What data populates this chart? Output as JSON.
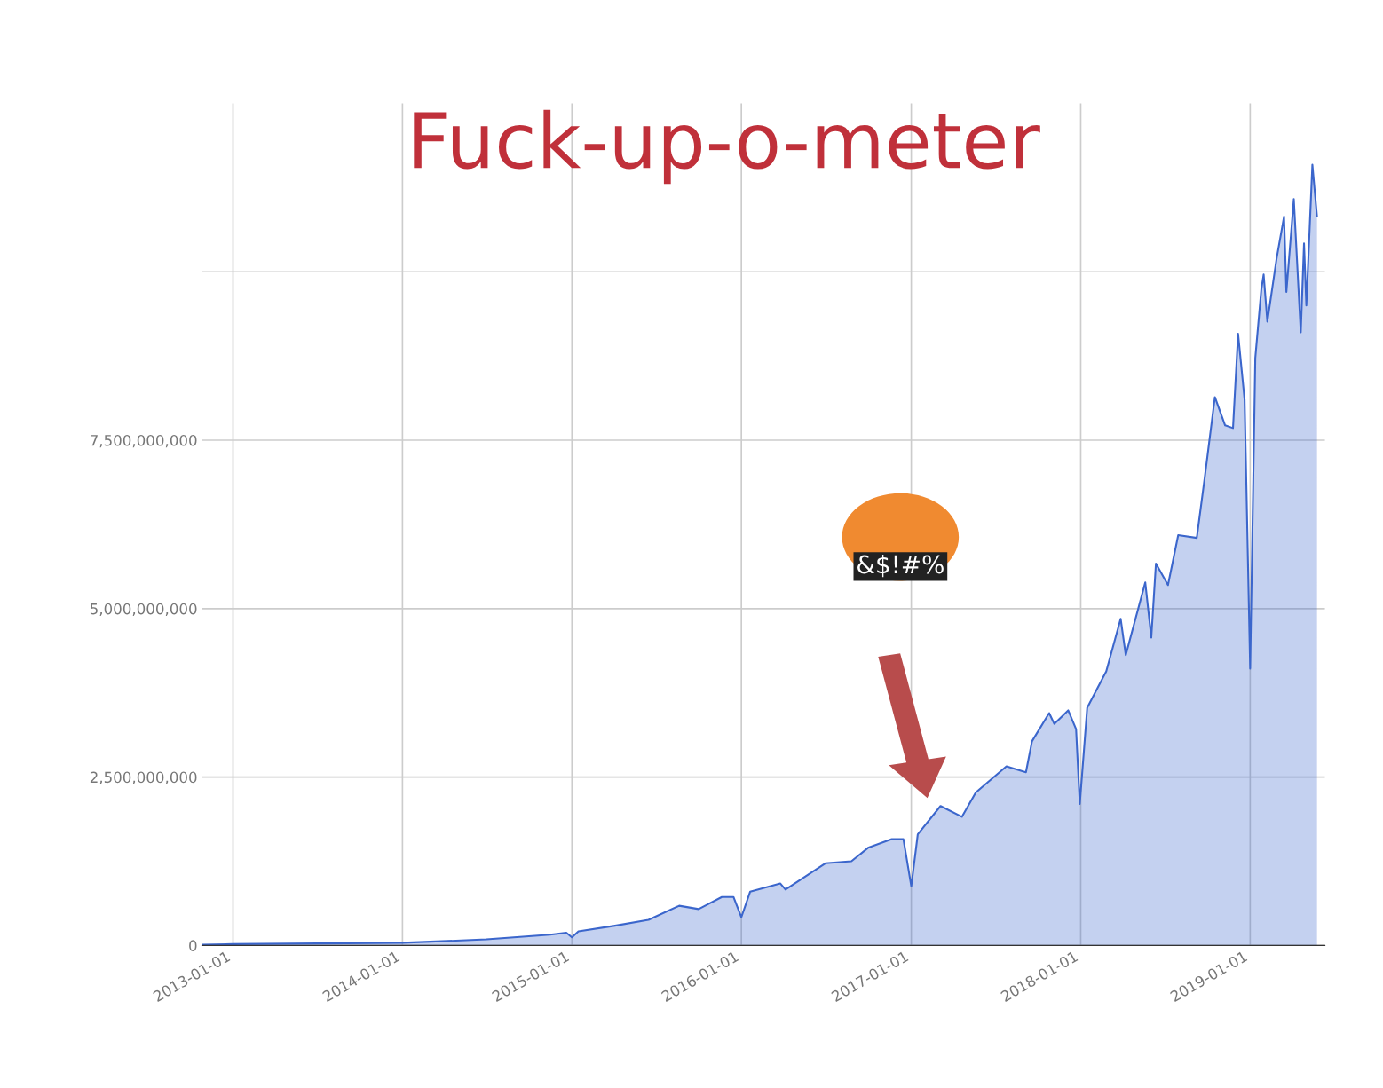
{
  "chart_data": {
    "type": "area",
    "title": "Fuck-up-o-meter",
    "annotations": [
      "&$!#%"
    ],
    "x": [
      "2012-10-26",
      "2013-01-01",
      "2014-01-01",
      "2014-07-01",
      "2014-11-15",
      "2014-12-20",
      "2015-01-01",
      "2015-01-15",
      "2015-04-01",
      "2015-06-15",
      "2015-08-20",
      "2015-10-01",
      "2015-11-20",
      "2015-12-15",
      "2016-01-01",
      "2016-01-20",
      "2016-03-25",
      "2016-04-05",
      "2016-06-30",
      "2016-08-25",
      "2016-09-30",
      "2016-11-20",
      "2016-12-15",
      "2017-01-01",
      "2017-01-15",
      "2017-03-05",
      "2017-04-20",
      "2017-05-20",
      "2017-07-25",
      "2017-09-05",
      "2017-09-18",
      "2017-10-25",
      "2017-11-05",
      "2017-12-05",
      "2017-12-22",
      "2017-12-30",
      "2018-01-15",
      "2018-02-25",
      "2018-03-28",
      "2018-04-08",
      "2018-05-20",
      "2018-06-02",
      "2018-06-12",
      "2018-07-08",
      "2018-07-30",
      "2018-09-08",
      "2018-09-25",
      "2018-10-17",
      "2018-11-08",
      "2018-11-25",
      "2018-12-06",
      "2018-12-20",
      "2019-01-01",
      "2019-01-12",
      "2019-01-25",
      "2019-01-30",
      "2019-02-07",
      "2019-02-27",
      "2019-03-15",
      "2019-03-20",
      "2019-04-05",
      "2019-04-20",
      "2019-04-27",
      "2019-05-02",
      "2019-05-15",
      "2019-05-25"
    ],
    "series": [
      {
        "color": "#3b66cc",
        "values": [
          10000000,
          20000000,
          40000000,
          90000000,
          160000000,
          190000000,
          120000000,
          210000000,
          290000000,
          380000000,
          590000000,
          540000000,
          720000000,
          720000000,
          420000000,
          800000000,
          920000000,
          830000000,
          1220000000,
          1250000000,
          1450000000,
          1580000000,
          1580000000,
          880000000,
          1650000000,
          2070000000,
          1910000000,
          2270000000,
          2660000000,
          2570000000,
          3030000000,
          3450000000,
          3290000000,
          3490000000,
          3210000000,
          2100000000,
          3530000000,
          4070000000,
          4850000000,
          4310000000,
          5390000000,
          4570000000,
          5670000000,
          5350000000,
          6090000000,
          6050000000,
          6940000000,
          8140000000,
          7720000000,
          7680000000,
          9080000000,
          8100000000,
          4110000000,
          8720000000,
          9740000000,
          9960000000,
          9260000000,
          10200000000,
          10820000000,
          9700000000,
          11080000000,
          9100000000,
          10420000000,
          9500000000,
          11590000000,
          10820000000
        ]
      }
    ],
    "xlim": [
      "2012-10-26",
      "2019-06-11"
    ],
    "xticks": [
      "2013-01-01",
      "2014-01-01",
      "2015-01-01",
      "2016-01-01",
      "2017-01-01",
      "2018-01-01",
      "2019-01-01"
    ],
    "ylim": [
      0,
      12500000000
    ],
    "yticks": [
      0,
      {
        "value": 2500000000,
        "label": "2,500,000,000"
      },
      {
        "value": 5000000000,
        "label": "5,000,000,000"
      },
      {
        "value": 7500000000,
        "label": "7,500,000,000"
      },
      {
        "value": 10000000000,
        "label": null
      }
    ],
    "grid": true,
    "legend": false
  }
}
